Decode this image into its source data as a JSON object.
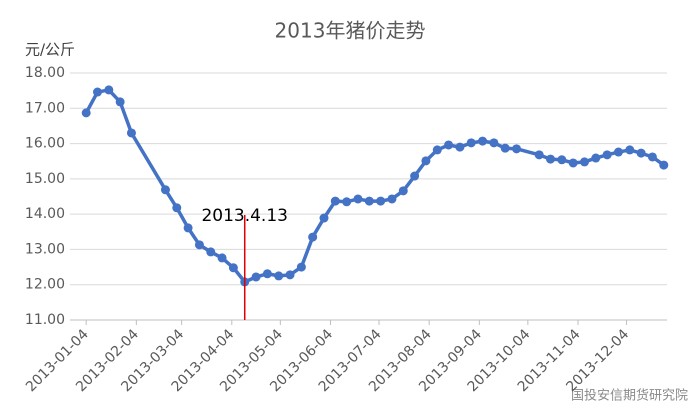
{
  "chart_data": {
    "type": "line",
    "title": "2013年猪价走势",
    "y_label": "元/公斤",
    "annotation": "2013.4.13",
    "watermark": "国投安信期货研究院",
    "color": "#4472c4",
    "grid": true,
    "x": [
      "2013-01-04",
      "2013-01-11",
      "2013-01-18",
      "2013-01-25",
      "2013-02-01",
      "2013-02-22",
      "2013-03-01",
      "2013-03-08",
      "2013-03-15",
      "2013-03-22",
      "2013-03-29",
      "2013-04-05",
      "2013-04-12",
      "2013-04-19",
      "2013-04-26",
      "2013-05-03",
      "2013-05-10",
      "2013-05-17",
      "2013-05-24",
      "2013-05-31",
      "2013-06-07",
      "2013-06-14",
      "2013-06-21",
      "2013-06-28",
      "2013-07-05",
      "2013-07-12",
      "2013-07-19",
      "2013-07-26",
      "2013-08-02",
      "2013-08-09",
      "2013-08-16",
      "2013-08-23",
      "2013-08-30",
      "2013-09-06",
      "2013-09-13",
      "2013-09-20",
      "2013-09-27",
      "2013-10-11",
      "2013-10-18",
      "2013-10-25",
      "2013-11-01",
      "2013-11-08",
      "2013-11-15",
      "2013-11-22",
      "2013-11-29",
      "2013-12-06",
      "2013-12-13",
      "2013-12-20",
      "2013-12-27"
    ],
    "values": [
      16.87,
      17.46,
      17.52,
      17.18,
      16.3,
      14.69,
      14.18,
      13.61,
      13.13,
      12.93,
      12.76,
      12.48,
      12.08,
      12.22,
      12.31,
      12.25,
      12.28,
      12.5,
      13.35,
      13.89,
      14.37,
      14.35,
      14.43,
      14.37,
      14.37,
      14.43,
      14.66,
      15.08,
      15.51,
      15.82,
      15.96,
      15.9,
      16.02,
      16.07,
      16.02,
      15.87,
      15.85,
      15.68,
      15.56,
      15.54,
      15.45,
      15.48,
      15.59,
      15.68,
      15.76,
      15.82,
      15.73,
      15.62,
      15.39
    ],
    "xlim": [
      "2012-12-25",
      "2013-12-29"
    ],
    "xticks": [
      "2013-01-04",
      "2013-02-04",
      "2013-03-04",
      "2013-04-04",
      "2013-05-04",
      "2013-06-04",
      "2013-07-04",
      "2013-08-04",
      "2013-09-04",
      "2013-10-04",
      "2013-11-04",
      "2013-12-04"
    ],
    "ylim": [
      11,
      18
    ],
    "yticks": [
      {
        "value": 11,
        "label": "11.00"
      },
      {
        "value": 12,
        "label": "12.00"
      },
      {
        "value": 13,
        "label": "13.00"
      },
      {
        "value": 14,
        "label": "14.00"
      },
      {
        "value": 15,
        "label": "15.00"
      },
      {
        "value": 16,
        "label": "16.00"
      },
      {
        "value": 17,
        "label": "17.00"
      },
      {
        "value": 18,
        "label": "18.00"
      }
    ]
  }
}
